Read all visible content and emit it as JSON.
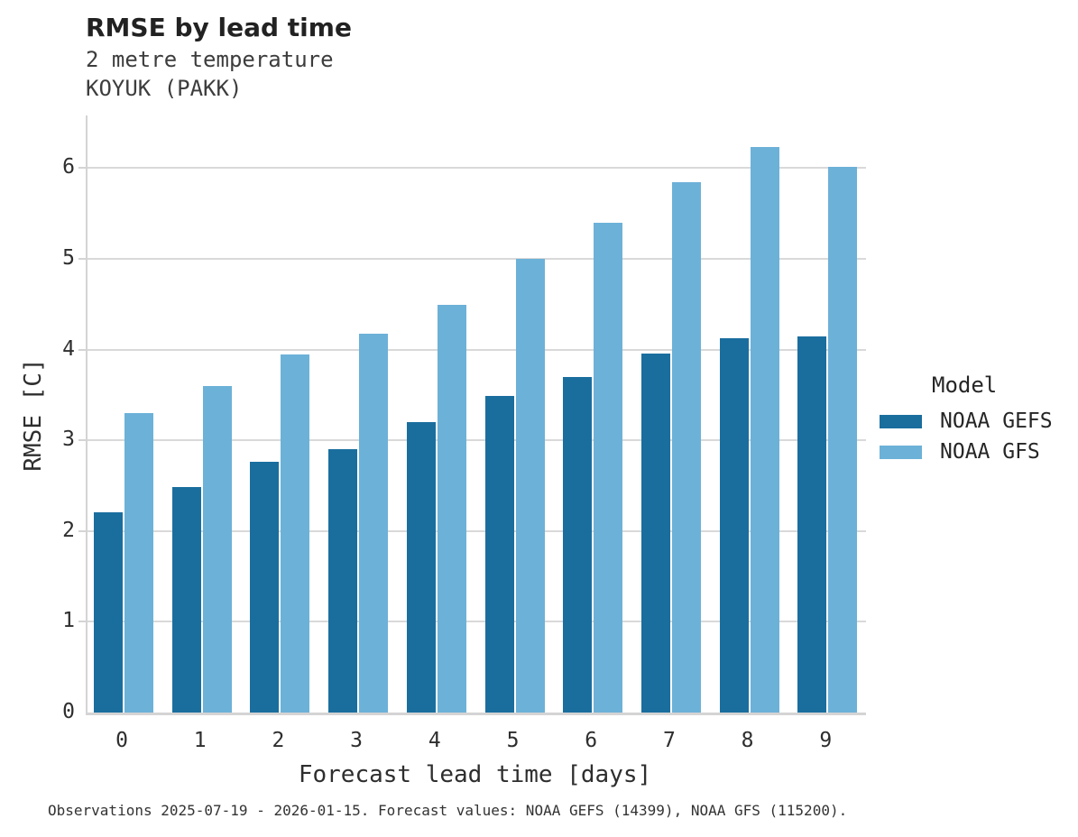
{
  "header": {
    "title": "RMSE by lead time",
    "subtitle_line1": "2 metre temperature",
    "subtitle_line2": "KOYUK (PAKK)"
  },
  "chart_data": {
    "type": "bar",
    "title": "RMSE by lead time",
    "subtitle": "2 metre temperature — KOYUK (PAKK)",
    "xlabel": "Forecast lead time [days]",
    "ylabel": "RMSE [C]",
    "categories": [
      "0",
      "1",
      "2",
      "3",
      "4",
      "5",
      "6",
      "7",
      "8",
      "9"
    ],
    "series": [
      {
        "name": "NOAA GEFS",
        "color": "#1a6e9e",
        "values": [
          2.21,
          2.49,
          2.76,
          2.9,
          3.2,
          3.49,
          3.7,
          3.96,
          4.13,
          4.14
        ]
      },
      {
        "name": "NOAA GFS",
        "color": "#6cb1d8",
        "values": [
          3.3,
          3.6,
          3.95,
          4.17,
          4.49,
          5.0,
          5.4,
          5.84,
          6.23,
          6.01
        ]
      }
    ],
    "ylim": [
      0,
      6.58
    ],
    "yticks": [
      0,
      1,
      2,
      3,
      4,
      5,
      6
    ],
    "grid": "horizontal",
    "legend_title": "Model",
    "legend_position": "right"
  },
  "caption": {
    "text": "Observations 2025-07-19 - 2026-01-15. Forecast values: NOAA GEFS (14399), NOAA GFS (115200)."
  },
  "colors": {
    "grid": "#d9d9d9",
    "spine": "#d4d4d4",
    "title_text": "#222222",
    "subtitle_text": "#3d3d3d",
    "tick_text": "#2e2e2e"
  }
}
